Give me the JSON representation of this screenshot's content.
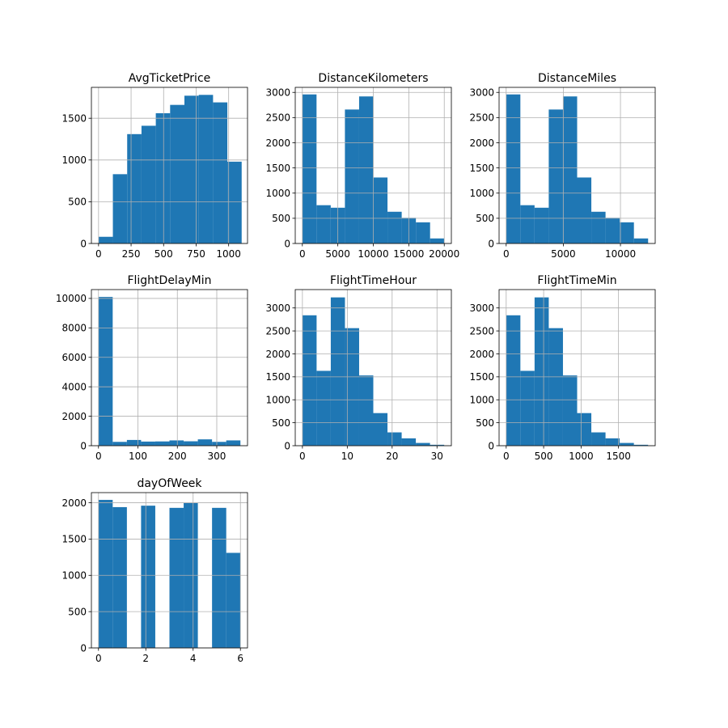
{
  "style": {
    "bar_color": "#1f77b4",
    "grid_color": "#b0b0b0",
    "axis_color": "#000000",
    "background": "#ffffff"
  },
  "chart_data": [
    {
      "type": "bar",
      "title": "AvgTicketPrice",
      "grid": true,
      "xlim": [
        -55,
        1145
      ],
      "ylim": [
        0,
        1870
      ],
      "xticks": [
        0,
        250,
        500,
        750,
        1000
      ],
      "xtick_labels": [
        "0",
        "250",
        "500",
        "750",
        "1000"
      ],
      "yticks": [
        0,
        500,
        1000,
        1500
      ],
      "ytick_labels": [
        "0",
        "500",
        "1000",
        "1500"
      ],
      "bin_edges": [
        0,
        110,
        220,
        330,
        440,
        550,
        660,
        770,
        880,
        990,
        1100
      ],
      "values": [
        80,
        830,
        1310,
        1410,
        1560,
        1660,
        1770,
        1780,
        1690,
        980
      ]
    },
    {
      "type": "bar",
      "title": "DistanceKilometers",
      "grid": true,
      "xlim": [
        -1000,
        21000
      ],
      "ylim": [
        0,
        3100
      ],
      "xticks": [
        0,
        5000,
        10000,
        15000,
        20000
      ],
      "xtick_labels": [
        "0",
        "5000",
        "10000",
        "15000",
        "20000"
      ],
      "yticks": [
        0,
        500,
        1000,
        1500,
        2000,
        2500,
        3000
      ],
      "ytick_labels": [
        "0",
        "500",
        "1000",
        "1500",
        "2000",
        "2500",
        "3000"
      ],
      "bin_edges": [
        0,
        2000,
        4000,
        6000,
        8000,
        10000,
        12000,
        14000,
        16000,
        18000,
        20000
      ],
      "values": [
        2960,
        760,
        710,
        2660,
        2920,
        1310,
        630,
        510,
        420,
        100
      ]
    },
    {
      "type": "bar",
      "title": "DistanceMiles",
      "grid": true,
      "xlim": [
        -620,
        13040
      ],
      "ylim": [
        0,
        3100
      ],
      "xticks": [
        0,
        5000,
        10000
      ],
      "xtick_labels": [
        "0",
        "5000",
        "10000"
      ],
      "yticks": [
        0,
        500,
        1000,
        1500,
        2000,
        2500,
        3000
      ],
      "ytick_labels": [
        "0",
        "500",
        "1000",
        "1500",
        "2000",
        "2500",
        "3000"
      ],
      "bin_edges": [
        0,
        1242,
        2484,
        3726,
        4968,
        6210,
        7452,
        8694,
        9936,
        11178,
        12420
      ],
      "values": [
        2960,
        760,
        710,
        2660,
        2920,
        1310,
        630,
        510,
        420,
        100
      ]
    },
    {
      "type": "bar",
      "title": "FlightDelayMin",
      "grid": true,
      "xlim": [
        -18,
        378
      ],
      "ylim": [
        0,
        10600
      ],
      "xticks": [
        0,
        100,
        200,
        300
      ],
      "xtick_labels": [
        "0",
        "100",
        "200",
        "300"
      ],
      "yticks": [
        0,
        2000,
        4000,
        6000,
        8000,
        10000
      ],
      "ytick_labels": [
        "0",
        "2000",
        "4000",
        "6000",
        "8000",
        "10000"
      ],
      "bin_edges": [
        0,
        36,
        72,
        108,
        144,
        180,
        216,
        252,
        288,
        324,
        360
      ],
      "values": [
        10100,
        260,
        390,
        280,
        290,
        360,
        300,
        430,
        260,
        360
      ]
    },
    {
      "type": "bar",
      "title": "FlightTimeHour",
      "grid": true,
      "xlim": [
        -1.6,
        33.2
      ],
      "ylim": [
        0,
        3400
      ],
      "xticks": [
        0,
        10,
        20,
        30
      ],
      "xtick_labels": [
        "0",
        "10",
        "20",
        "30"
      ],
      "yticks": [
        0,
        500,
        1000,
        1500,
        2000,
        2500,
        3000
      ],
      "ytick_labels": [
        "0",
        "500",
        "1000",
        "1500",
        "2000",
        "2500",
        "3000"
      ],
      "bin_edges": [
        0,
        3.16,
        6.32,
        9.48,
        12.64,
        15.8,
        18.96,
        22.12,
        25.28,
        28.44,
        31.6
      ],
      "values": [
        2840,
        1630,
        3230,
        2560,
        1530,
        710,
        290,
        160,
        60,
        20
      ]
    },
    {
      "type": "bar",
      "title": "FlightTimeMin",
      "grid": true,
      "xlim": [
        -95,
        1990
      ],
      "ylim": [
        0,
        3400
      ],
      "xticks": [
        0,
        500,
        1000,
        1500
      ],
      "xtick_labels": [
        "0",
        "500",
        "1000",
        "1500"
      ],
      "yticks": [
        0,
        500,
        1000,
        1500,
        2000,
        2500,
        3000
      ],
      "ytick_labels": [
        "0",
        "500",
        "1000",
        "1500",
        "2000",
        "2500",
        "3000"
      ],
      "bin_edges": [
        0,
        189.5,
        379,
        568.5,
        758,
        947.5,
        1137,
        1326.5,
        1516,
        1705.5,
        1895
      ],
      "values": [
        2840,
        1630,
        3230,
        2560,
        1530,
        710,
        290,
        160,
        60,
        20
      ]
    },
    {
      "type": "bar",
      "title": "dayOfWeek",
      "grid": true,
      "xlim": [
        -0.3,
        6.3
      ],
      "ylim": [
        0,
        2140
      ],
      "xticks": [
        0,
        2,
        4,
        6
      ],
      "xtick_labels": [
        "0",
        "2",
        "4",
        "6"
      ],
      "yticks": [
        0,
        500,
        1000,
        1500,
        2000
      ],
      "ytick_labels": [
        "0",
        "500",
        "1000",
        "1500",
        "2000"
      ],
      "bin_edges": [
        0,
        0.6,
        1.2,
        1.8,
        2.4,
        3.0,
        3.6,
        4.2,
        4.8,
        5.4,
        6.0
      ],
      "values": [
        2040,
        1940,
        0,
        1960,
        0,
        1930,
        2000,
        0,
        1930,
        1310
      ]
    }
  ]
}
